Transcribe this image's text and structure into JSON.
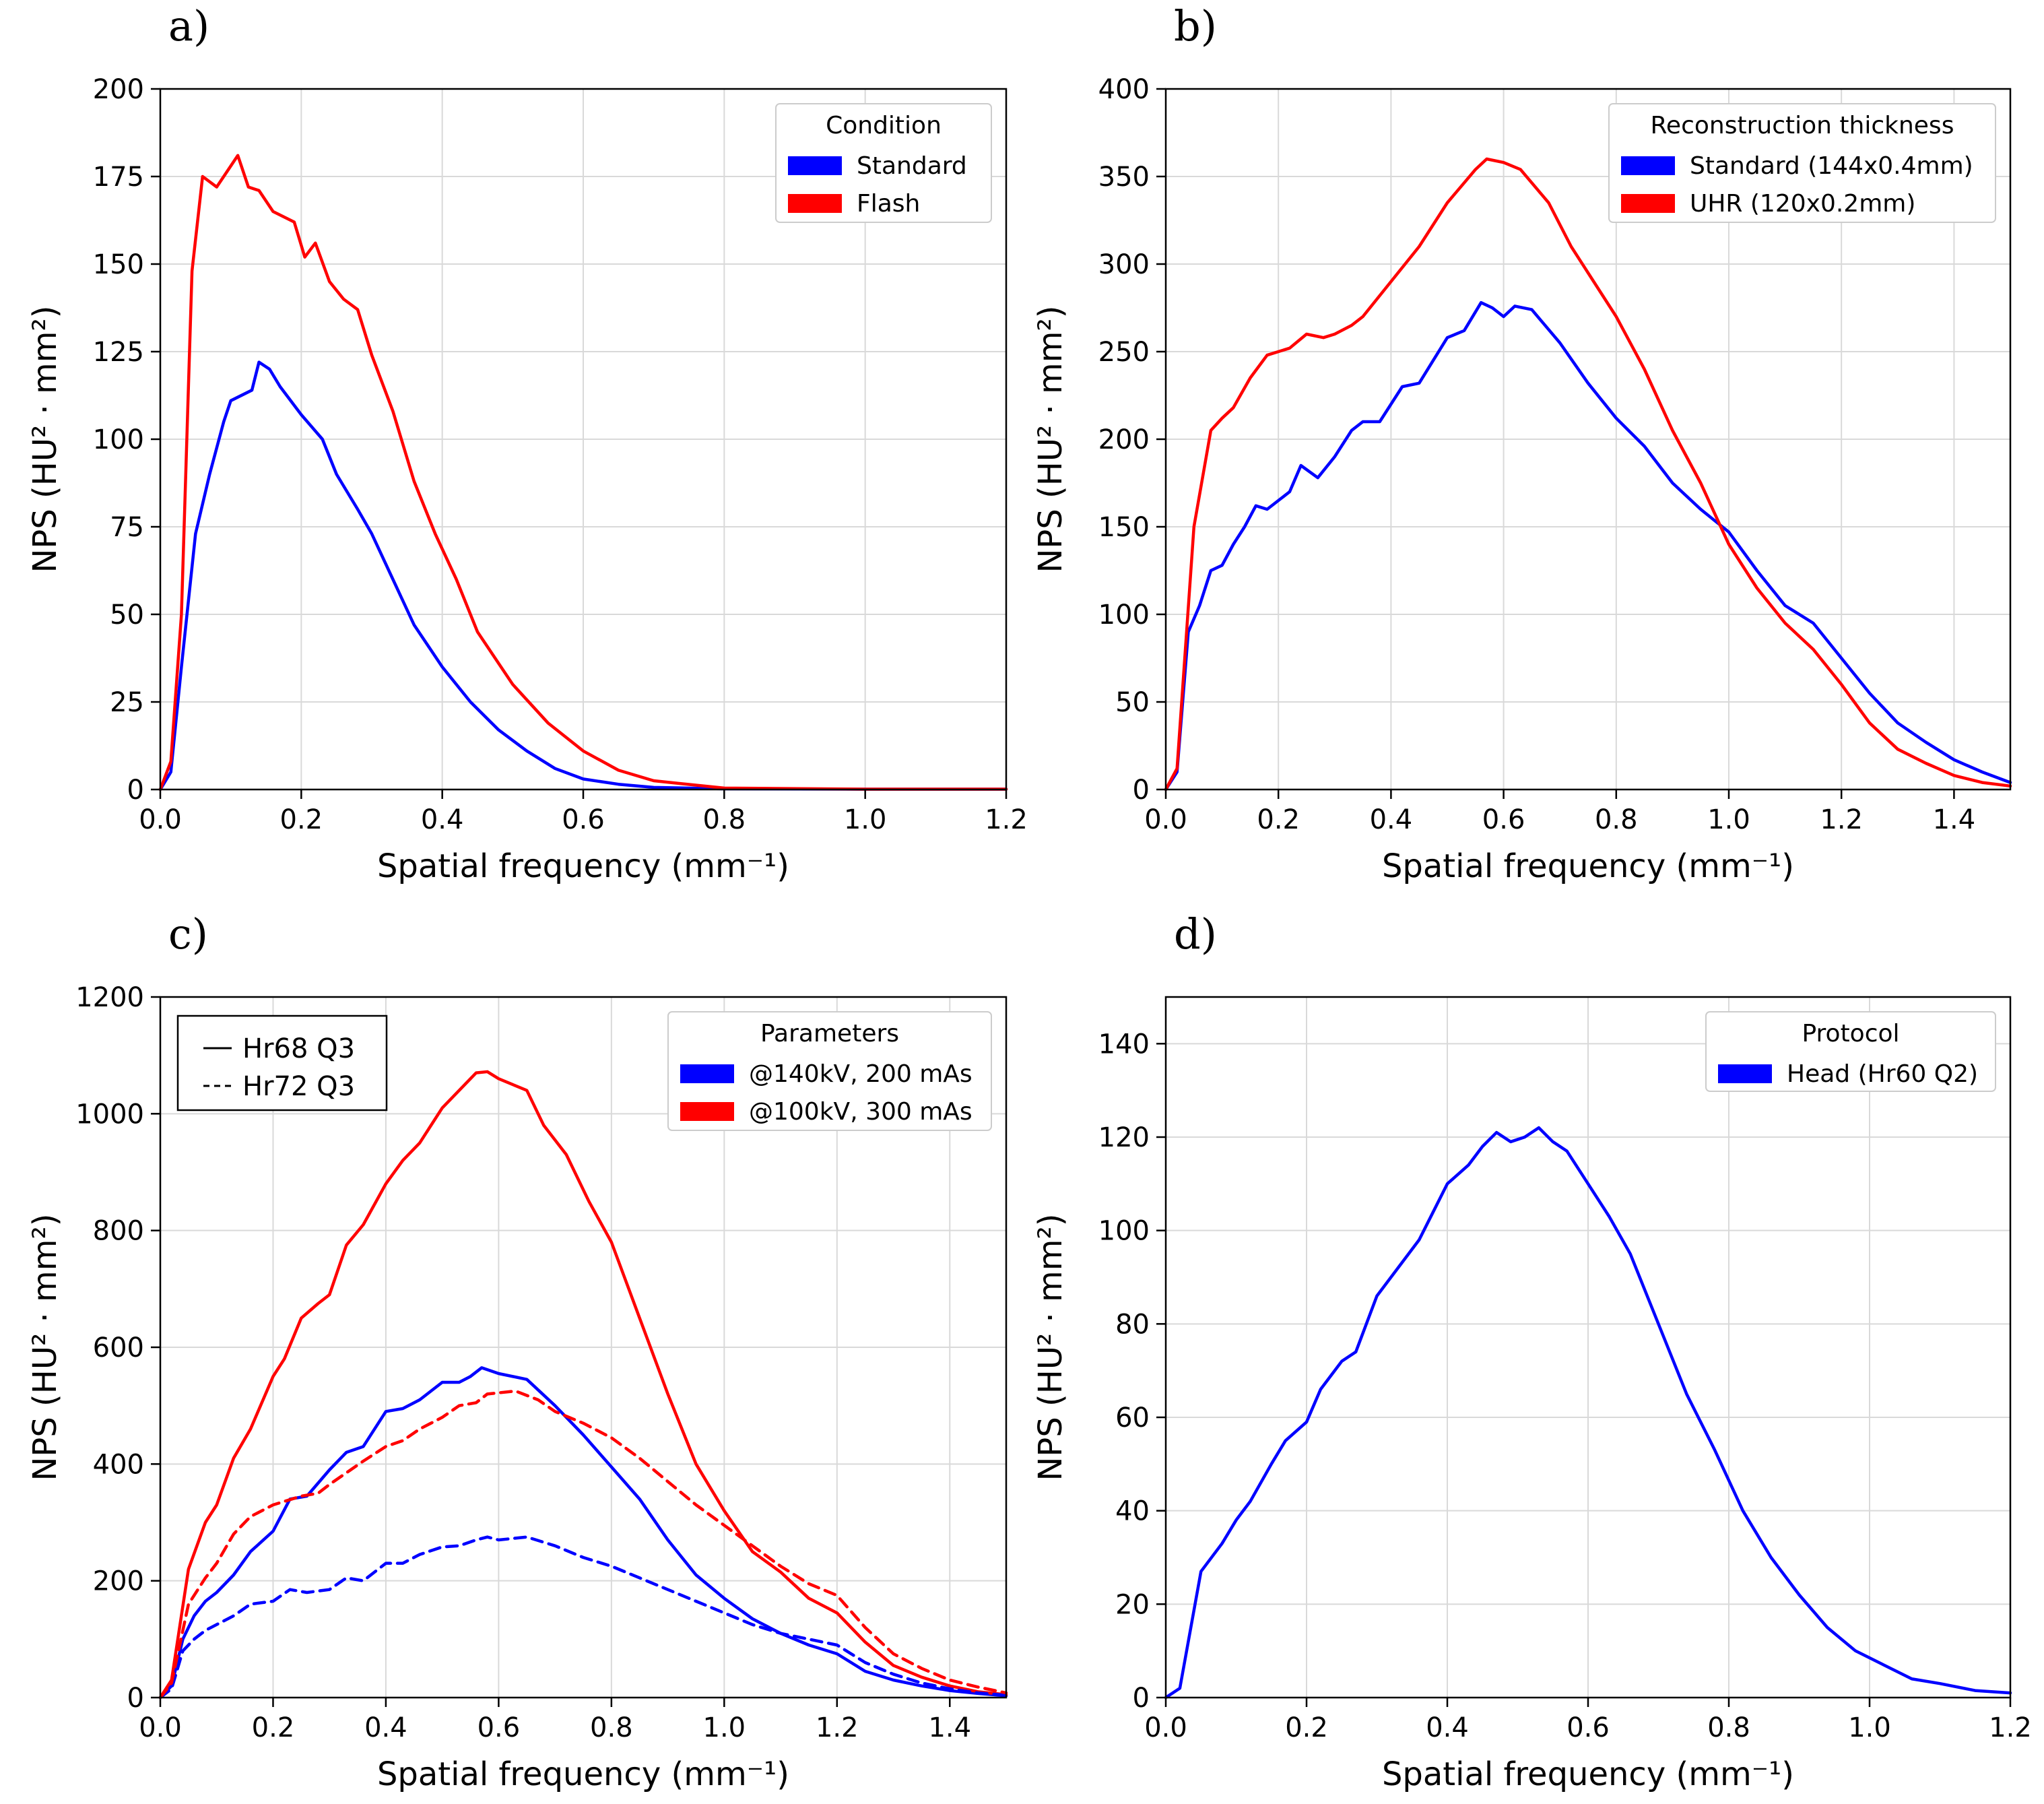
{
  "chart_data": [
    {
      "panel": "a)",
      "type": "line",
      "xlabel": "Spatial frequency (mm⁻¹)",
      "ylabel": "NPS (HU² · mm²)",
      "xlim": [
        0,
        1.2
      ],
      "ylim": [
        0,
        200
      ],
      "xticks": [
        0,
        0.2,
        0.4,
        0.6,
        0.8,
        1.0,
        1.2
      ],
      "xtick_labels": [
        "0.0",
        "0.2",
        "0.4",
        "0.6",
        "0.8",
        "1.0",
        "1.2"
      ],
      "yticks": [
        0,
        25,
        50,
        75,
        100,
        125,
        150,
        175,
        200
      ],
      "ytick_labels": [
        "0",
        "25",
        "50",
        "75",
        "100",
        "125",
        "150",
        "175",
        "200"
      ],
      "grid": true,
      "legend": {
        "title": "Condition",
        "placement": "top-right",
        "entries": [
          {
            "label": "Standard",
            "color": "#0000ff"
          },
          {
            "label": "Flash",
            "color": "#ff0000"
          }
        ]
      },
      "series": [
        {
          "name": "Standard",
          "color": "#0000ff",
          "dash": "solid",
          "x": [
            0,
            0.015,
            0.03,
            0.05,
            0.07,
            0.09,
            0.1,
            0.13,
            0.14,
            0.155,
            0.17,
            0.2,
            0.23,
            0.25,
            0.28,
            0.3,
            0.33,
            0.36,
            0.4,
            0.44,
            0.48,
            0.52,
            0.56,
            0.6,
            0.65,
            0.7,
            0.8,
            1.0,
            1.2
          ],
          "y": [
            0,
            5,
            35,
            73,
            90,
            105,
            111,
            114,
            122,
            120,
            115,
            107,
            100,
            90,
            80,
            73,
            60,
            47,
            35,
            25,
            17,
            11,
            6,
            3,
            1.5,
            0.6,
            0.2,
            0.1,
            0.1
          ]
        },
        {
          "name": "Flash",
          "color": "#ff0000",
          "dash": "solid",
          "x": [
            0,
            0.015,
            0.03,
            0.045,
            0.06,
            0.08,
            0.11,
            0.125,
            0.14,
            0.16,
            0.19,
            0.205,
            0.22,
            0.24,
            0.26,
            0.28,
            0.3,
            0.33,
            0.36,
            0.39,
            0.42,
            0.45,
            0.5,
            0.55,
            0.6,
            0.65,
            0.7,
            0.8,
            1.0,
            1.2
          ],
          "y": [
            0,
            8,
            50,
            148,
            175,
            172,
            181,
            172,
            171,
            165,
            162,
            152,
            156,
            145,
            140,
            137,
            124,
            108,
            88,
            73,
            60,
            45,
            30,
            19,
            11,
            5.5,
            2.5,
            0.4,
            0.1,
            0.1
          ]
        }
      ]
    },
    {
      "panel": "b)",
      "type": "line",
      "xlabel": "Spatial frequency (mm⁻¹)",
      "ylabel": "NPS (HU² · mm²)",
      "xlim": [
        0,
        1.5
      ],
      "ylim": [
        0,
        400
      ],
      "xticks": [
        0,
        0.2,
        0.4,
        0.6,
        0.8,
        1.0,
        1.2,
        1.4
      ],
      "xtick_labels": [
        "0.0",
        "0.2",
        "0.4",
        "0.6",
        "0.8",
        "1.0",
        "1.2",
        "1.4"
      ],
      "yticks": [
        0,
        50,
        100,
        150,
        200,
        250,
        300,
        350,
        400
      ],
      "ytick_labels": [
        "0",
        "50",
        "100",
        "150",
        "200",
        "250",
        "300",
        "350",
        "400"
      ],
      "grid": true,
      "legend": {
        "title": "Reconstruction thickness",
        "placement": "top-right",
        "entries": [
          {
            "label": "Standard (144x0.4mm)",
            "color": "#0000ff"
          },
          {
            "label": "UHR (120x0.2mm)",
            "color": "#ff0000"
          }
        ]
      },
      "series": [
        {
          "name": "Standard (144x0.4mm)",
          "color": "#0000ff",
          "dash": "solid",
          "x": [
            0,
            0.02,
            0.04,
            0.06,
            0.08,
            0.1,
            0.12,
            0.14,
            0.16,
            0.18,
            0.2,
            0.22,
            0.24,
            0.27,
            0.3,
            0.33,
            0.35,
            0.38,
            0.4,
            0.42,
            0.45,
            0.5,
            0.53,
            0.56,
            0.58,
            0.6,
            0.62,
            0.65,
            0.7,
            0.75,
            0.8,
            0.85,
            0.9,
            0.95,
            1.0,
            1.05,
            1.1,
            1.15,
            1.2,
            1.25,
            1.3,
            1.35,
            1.4,
            1.45,
            1.5
          ],
          "y": [
            0,
            10,
            90,
            105,
            125,
            128,
            140,
            150,
            162,
            160,
            165,
            170,
            185,
            178,
            190,
            205,
            210,
            210,
            220,
            230,
            232,
            258,
            262,
            278,
            275,
            270,
            276,
            274,
            255,
            232,
            212,
            196,
            175,
            160,
            147,
            125,
            105,
            95,
            75,
            55,
            38,
            27,
            17,
            10,
            4
          ]
        },
        {
          "name": "UHR (120x0.2mm)",
          "color": "#ff0000",
          "dash": "solid",
          "x": [
            0,
            0.02,
            0.05,
            0.08,
            0.1,
            0.12,
            0.15,
            0.18,
            0.2,
            0.22,
            0.25,
            0.28,
            0.3,
            0.33,
            0.35,
            0.4,
            0.45,
            0.5,
            0.55,
            0.57,
            0.6,
            0.63,
            0.68,
            0.72,
            0.76,
            0.8,
            0.85,
            0.9,
            0.95,
            1.0,
            1.05,
            1.1,
            1.15,
            1.2,
            1.25,
            1.3,
            1.35,
            1.4,
            1.45,
            1.5
          ],
          "y": [
            0,
            12,
            150,
            205,
            212,
            218,
            235,
            248,
            250,
            252,
            260,
            258,
            260,
            265,
            270,
            290,
            310,
            335,
            354,
            360,
            358,
            354,
            335,
            310,
            290,
            270,
            240,
            205,
            175,
            140,
            115,
            95,
            80,
            60,
            38,
            23,
            15,
            8,
            4,
            2
          ]
        }
      ]
    },
    {
      "panel": "c)",
      "type": "line",
      "xlabel": "Spatial frequency (mm⁻¹)",
      "ylabel": "NPS (HU² · mm²)",
      "xlim": [
        0,
        1.5
      ],
      "ylim": [
        0,
        1200
      ],
      "xticks": [
        0,
        0.2,
        0.4,
        0.6,
        0.8,
        1.0,
        1.2,
        1.4
      ],
      "xtick_labels": [
        "0.0",
        "0.2",
        "0.4",
        "0.6",
        "0.8",
        "1.0",
        "1.2",
        "1.4"
      ],
      "yticks": [
        0,
        200,
        400,
        600,
        800,
        1000,
        1200
      ],
      "ytick_labels": [
        "0",
        "200",
        "400",
        "600",
        "800",
        "1000",
        "1200"
      ],
      "grid": true,
      "legend": {
        "title": "Parameters",
        "placement": "top-right",
        "entries": [
          {
            "label": "@140kV, 200 mAs",
            "color": "#0000ff"
          },
          {
            "label": "@100kV, 300 mAs",
            "color": "#ff0000"
          }
        ]
      },
      "style_legend": {
        "placement": "top-left",
        "entries": [
          {
            "label": "Hr68 Q3",
            "dash": "solid"
          },
          {
            "label": "Hr72 Q3",
            "dash": "dashed"
          }
        ]
      },
      "series": [
        {
          "name": "@140kV, 200 mAs Hr68 Q3",
          "color": "#0000ff",
          "dash": "solid",
          "x": [
            0,
            0.02,
            0.04,
            0.06,
            0.08,
            0.1,
            0.13,
            0.16,
            0.2,
            0.23,
            0.26,
            0.3,
            0.33,
            0.36,
            0.4,
            0.43,
            0.46,
            0.5,
            0.53,
            0.55,
            0.57,
            0.6,
            0.65,
            0.7,
            0.75,
            0.8,
            0.85,
            0.9,
            0.95,
            1.0,
            1.05,
            1.1,
            1.15,
            1.2,
            1.25,
            1.3,
            1.35,
            1.4,
            1.45,
            1.5
          ],
          "y": [
            0,
            20,
            100,
            140,
            165,
            180,
            210,
            250,
            285,
            340,
            345,
            390,
            420,
            430,
            490,
            495,
            510,
            540,
            540,
            550,
            565,
            555,
            545,
            500,
            450,
            395,
            340,
            270,
            210,
            170,
            135,
            110,
            90,
            75,
            45,
            30,
            20,
            12,
            7,
            3
          ]
        },
        {
          "name": "@100kV, 300 mAs Hr68 Q3",
          "color": "#ff0000",
          "dash": "solid",
          "x": [
            0,
            0.02,
            0.05,
            0.08,
            0.1,
            0.13,
            0.16,
            0.2,
            0.22,
            0.25,
            0.28,
            0.3,
            0.33,
            0.36,
            0.4,
            0.43,
            0.46,
            0.5,
            0.53,
            0.56,
            0.58,
            0.6,
            0.65,
            0.68,
            0.72,
            0.76,
            0.8,
            0.85,
            0.9,
            0.95,
            1.0,
            1.05,
            1.1,
            1.15,
            1.2,
            1.25,
            1.3,
            1.35,
            1.4,
            1.45,
            1.5
          ],
          "y": [
            0,
            30,
            220,
            300,
            330,
            410,
            460,
            550,
            580,
            650,
            675,
            690,
            775,
            810,
            880,
            920,
            950,
            1010,
            1040,
            1070,
            1072,
            1060,
            1040,
            980,
            930,
            850,
            780,
            650,
            520,
            400,
            320,
            250,
            215,
            170,
            145,
            95,
            55,
            35,
            20,
            10,
            5
          ]
        },
        {
          "name": "@140kV, 200 mAs Hr72 Q3",
          "color": "#0000ff",
          "dash": "dashed",
          "x": [
            0,
            0.02,
            0.04,
            0.06,
            0.08,
            0.1,
            0.13,
            0.16,
            0.2,
            0.23,
            0.26,
            0.3,
            0.33,
            0.36,
            0.4,
            0.43,
            0.46,
            0.5,
            0.53,
            0.56,
            0.58,
            0.6,
            0.65,
            0.7,
            0.75,
            0.8,
            0.85,
            0.9,
            0.95,
            1.0,
            1.05,
            1.1,
            1.15,
            1.2,
            1.25,
            1.3,
            1.35,
            1.4,
            1.45,
            1.5
          ],
          "y": [
            0,
            15,
            80,
            100,
            115,
            125,
            140,
            160,
            165,
            185,
            180,
            185,
            205,
            200,
            230,
            230,
            245,
            258,
            260,
            270,
            275,
            270,
            275,
            260,
            240,
            225,
            205,
            185,
            165,
            145,
            125,
            110,
            100,
            90,
            60,
            40,
            25,
            15,
            8,
            4
          ]
        },
        {
          "name": "@100kV, 300 mAs Hr72 Q3",
          "color": "#ff0000",
          "dash": "dashed",
          "x": [
            0,
            0.02,
            0.05,
            0.08,
            0.1,
            0.13,
            0.16,
            0.2,
            0.25,
            0.28,
            0.3,
            0.33,
            0.36,
            0.4,
            0.43,
            0.46,
            0.5,
            0.53,
            0.56,
            0.58,
            0.6,
            0.63,
            0.67,
            0.7,
            0.75,
            0.8,
            0.85,
            0.9,
            0.95,
            1.0,
            1.05,
            1.1,
            1.15,
            1.2,
            1.25,
            1.3,
            1.35,
            1.4,
            1.45,
            1.5
          ],
          "y": [
            0,
            25,
            160,
            205,
            230,
            280,
            310,
            330,
            345,
            350,
            365,
            385,
            405,
            430,
            440,
            460,
            480,
            500,
            505,
            520,
            522,
            525,
            510,
            490,
            470,
            445,
            410,
            370,
            330,
            295,
            260,
            225,
            195,
            175,
            120,
            75,
            50,
            30,
            18,
            8
          ]
        }
      ]
    },
    {
      "panel": "d)",
      "type": "line",
      "xlabel": "Spatial frequency (mm⁻¹)",
      "ylabel": "NPS (HU² · mm²)",
      "xlim": [
        0,
        1.2
      ],
      "ylim": [
        0,
        150
      ],
      "xticks": [
        0,
        0.2,
        0.4,
        0.6,
        0.8,
        1.0,
        1.2
      ],
      "xtick_labels": [
        "0.0",
        "0.2",
        "0.4",
        "0.6",
        "0.8",
        "1.0",
        "1.2"
      ],
      "yticks": [
        0,
        20,
        40,
        60,
        80,
        100,
        120,
        140
      ],
      "ytick_labels": [
        "0",
        "20",
        "40",
        "60",
        "80",
        "100",
        "120",
        "140"
      ],
      "grid": true,
      "legend": {
        "title": "Protocol",
        "placement": "top-right",
        "entries": [
          {
            "label": "Head (Hr60 Q2)",
            "color": "#0000ff"
          }
        ]
      },
      "series": [
        {
          "name": "Head (Hr60 Q2)",
          "color": "#0000ff",
          "dash": "solid",
          "x": [
            0,
            0.02,
            0.05,
            0.08,
            0.1,
            0.12,
            0.15,
            0.17,
            0.2,
            0.22,
            0.25,
            0.27,
            0.3,
            0.33,
            0.36,
            0.38,
            0.4,
            0.43,
            0.45,
            0.47,
            0.49,
            0.51,
            0.53,
            0.55,
            0.57,
            0.6,
            0.63,
            0.66,
            0.7,
            0.74,
            0.78,
            0.82,
            0.86,
            0.9,
            0.94,
            0.98,
            1.02,
            1.06,
            1.1,
            1.15,
            1.2
          ],
          "y": [
            0,
            2,
            27,
            33,
            38,
            42,
            50,
            55,
            59,
            66,
            72,
            74,
            86,
            92,
            98,
            104,
            110,
            114,
            118,
            121,
            119,
            120,
            122,
            119,
            117,
            110,
            103,
            95,
            80,
            65,
            53,
            40,
            30,
            22,
            15,
            10,
            7,
            4,
            3,
            1.5,
            1
          ]
        }
      ]
    }
  ]
}
